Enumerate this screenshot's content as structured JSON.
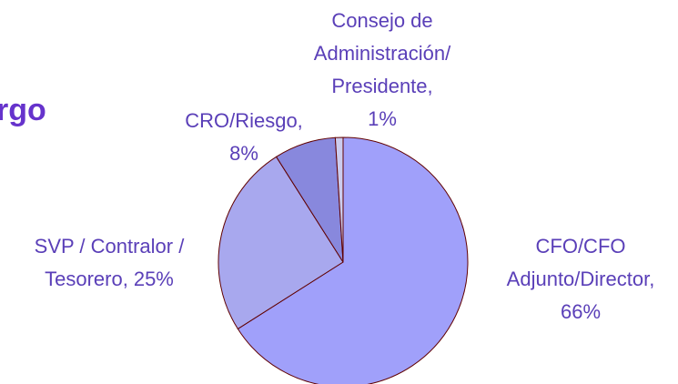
{
  "chart_data": {
    "type": "pie",
    "title": "rgo",
    "categories": [
      [
        "CFO/CFO",
        "Adjunto/Director,"
      ],
      [
        "SVP / Contralor /",
        "Tesorero,"
      ],
      [
        "CRO/Riesgo,"
      ],
      [
        "Consejo de",
        "Administración/",
        "Presidente,"
      ]
    ],
    "values": [
      66,
      25,
      8,
      1
    ],
    "value_labels": [
      "66%",
      "25%",
      "8%",
      "1%"
    ],
    "colors": [
      "#a0a0fa",
      "#a8a8ee",
      "#8888dd",
      "#ccccee"
    ]
  }
}
